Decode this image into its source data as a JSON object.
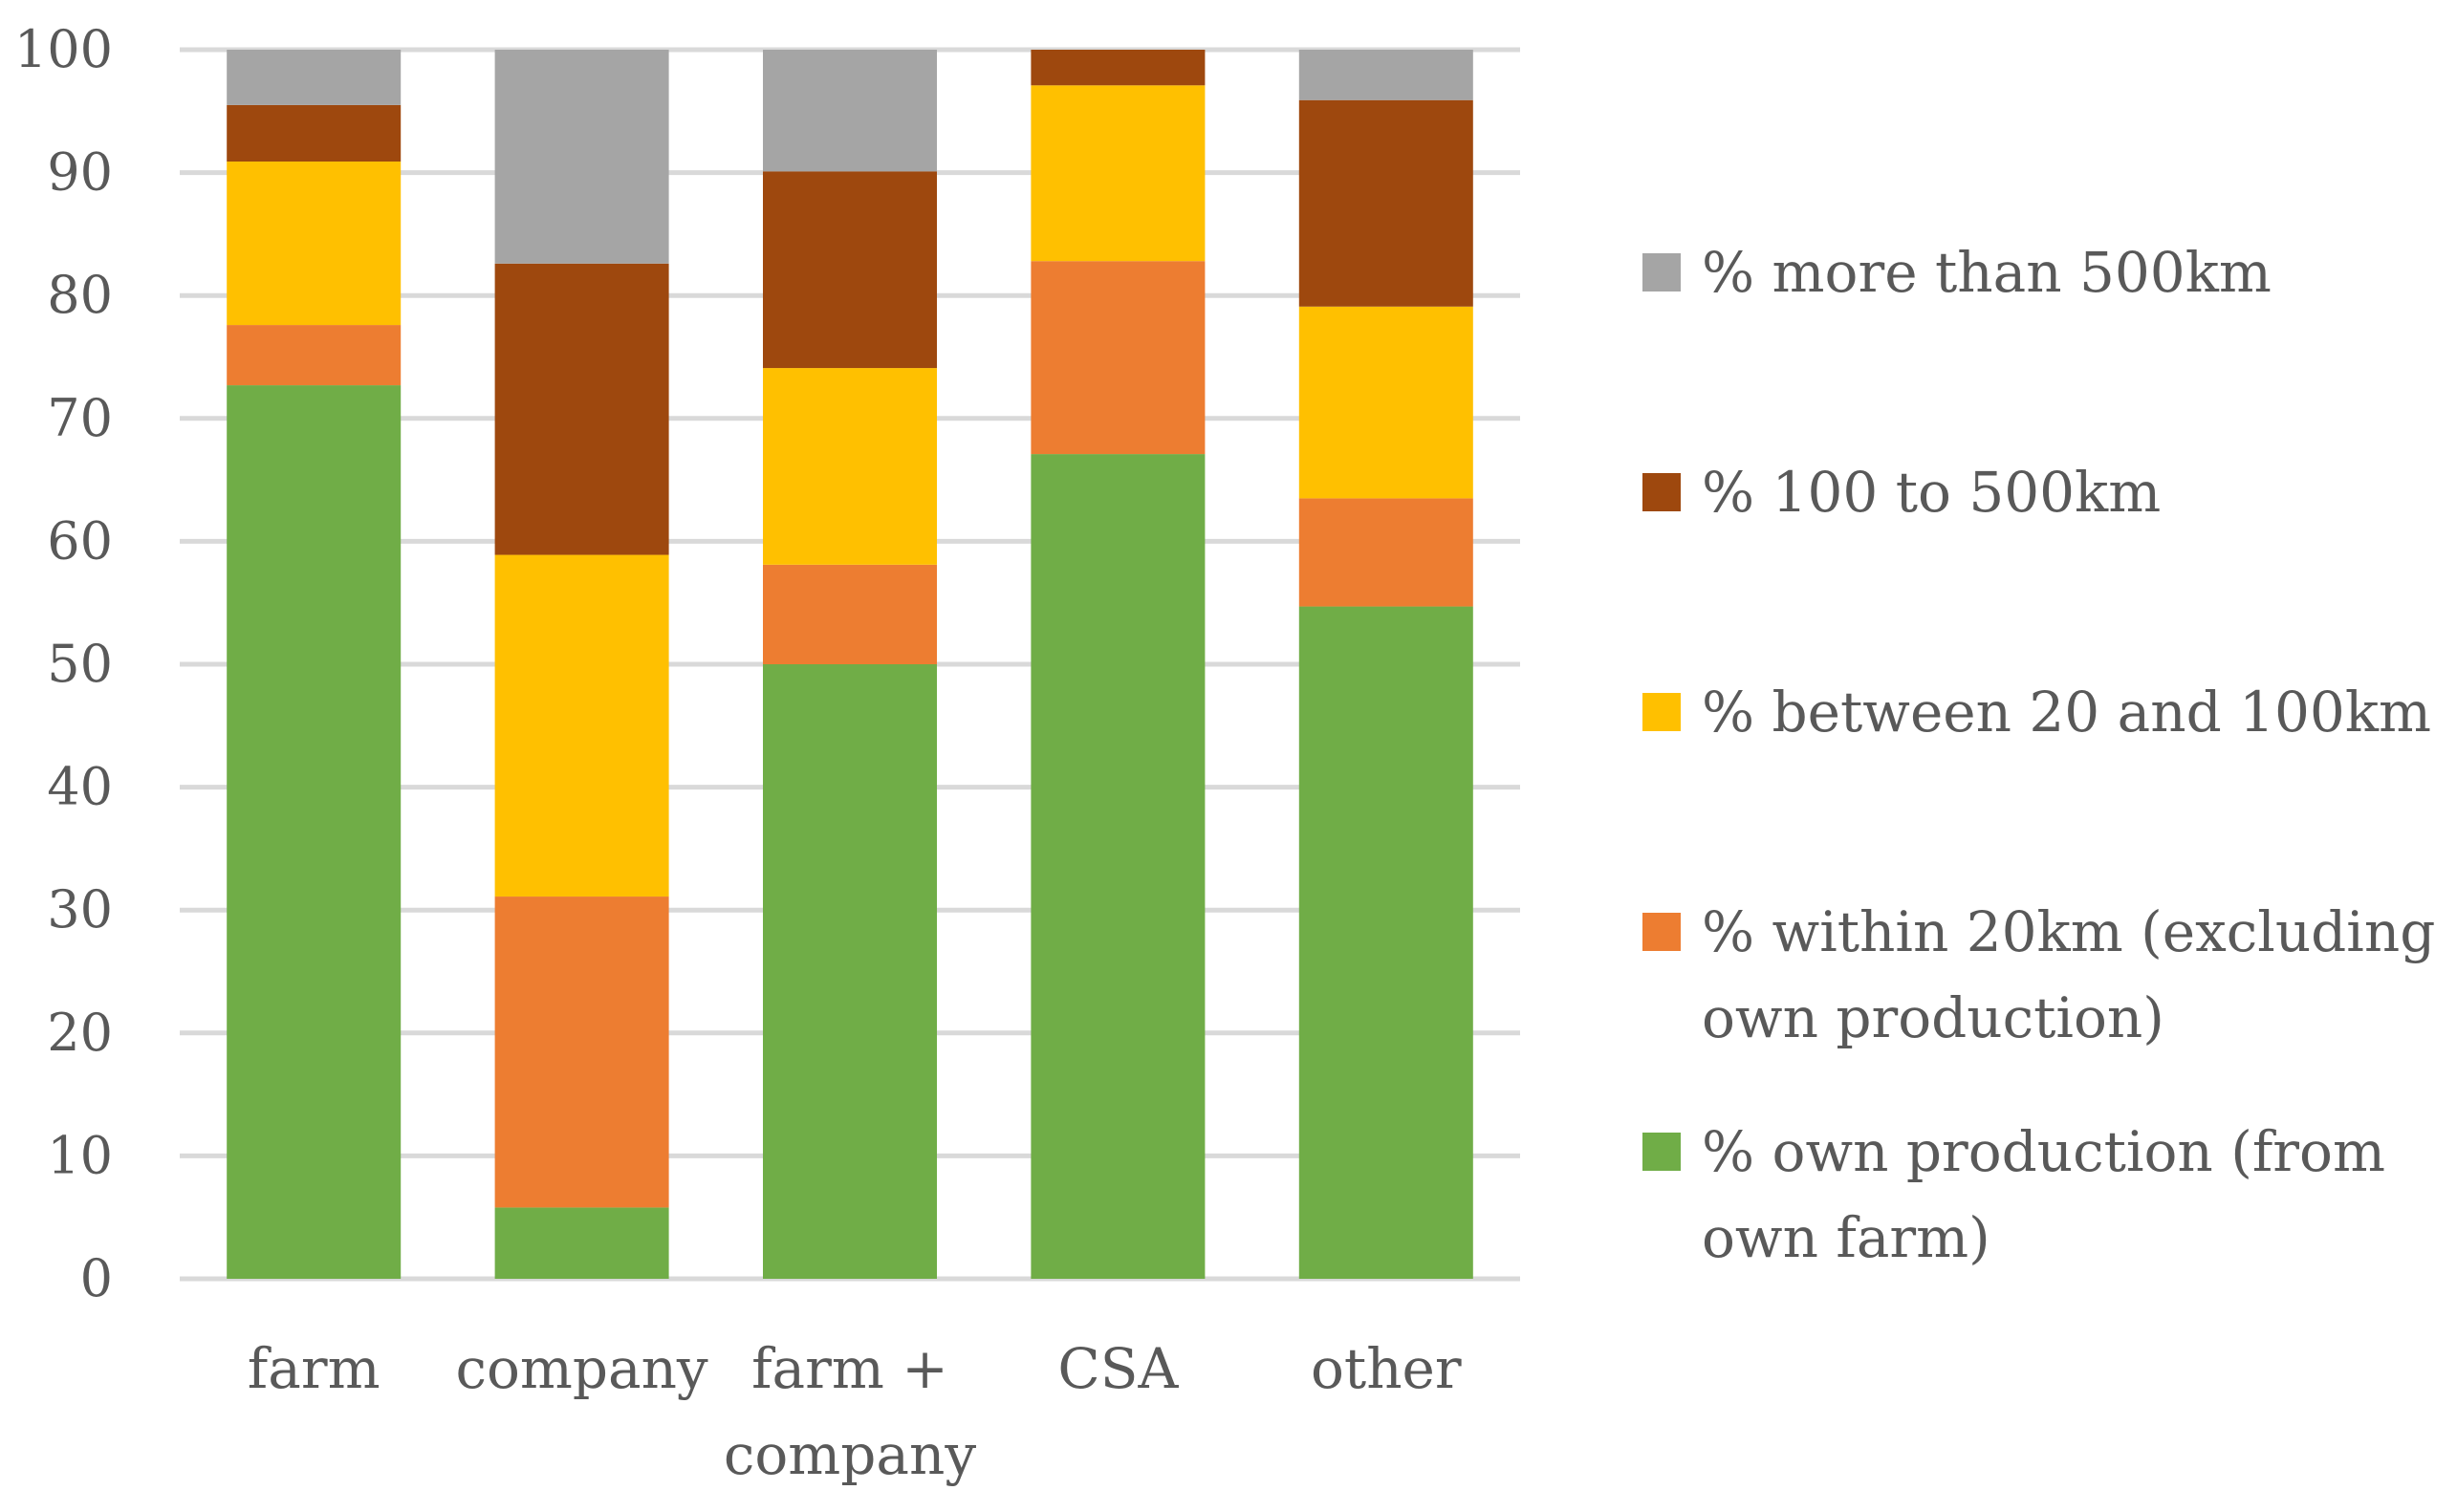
{
  "chart_data": {
    "type": "bar",
    "stacked": true,
    "categories": [
      [
        "farm"
      ],
      [
        "company"
      ],
      [
        "farm +",
        "company"
      ],
      [
        "CSA"
      ],
      [
        "other"
      ]
    ],
    "ylim": [
      0,
      100
    ],
    "yticks": [
      0,
      10,
      20,
      30,
      40,
      50,
      60,
      70,
      80,
      90,
      100
    ],
    "grid": true,
    "legend_position": "right",
    "series": [
      {
        "name": "% own production (from own farm)",
        "legend_lines": [
          "% own production (from",
          "own farm)"
        ],
        "color": "#70AD47",
        "values": [
          72.7,
          5.8,
          50.0,
          67.1,
          54.7
        ]
      },
      {
        "name": "% within 20km (excluding own production)",
        "legend_lines": [
          "% within 20km (excluding",
          "own production)"
        ],
        "color": "#ED7D31",
        "values": [
          4.9,
          25.3,
          8.1,
          15.7,
          8.8
        ]
      },
      {
        "name": "% between 20 and 100km",
        "legend_lines": [
          "% between 20 and 100km"
        ],
        "color": "#FFC000",
        "values": [
          13.3,
          27.8,
          16.0,
          14.3,
          15.6
        ]
      },
      {
        "name": "% 100 to 500km",
        "legend_lines": [
          "% 100 to 500km"
        ],
        "color": "#9E480E",
        "values": [
          4.6,
          23.7,
          16.0,
          2.9,
          16.8
        ]
      },
      {
        "name": "% more than 500km",
        "legend_lines": [
          "% more than 500km"
        ],
        "color": "#A5A5A5",
        "values": [
          4.5,
          17.4,
          9.9,
          0.0,
          4.1
        ]
      }
    ]
  }
}
